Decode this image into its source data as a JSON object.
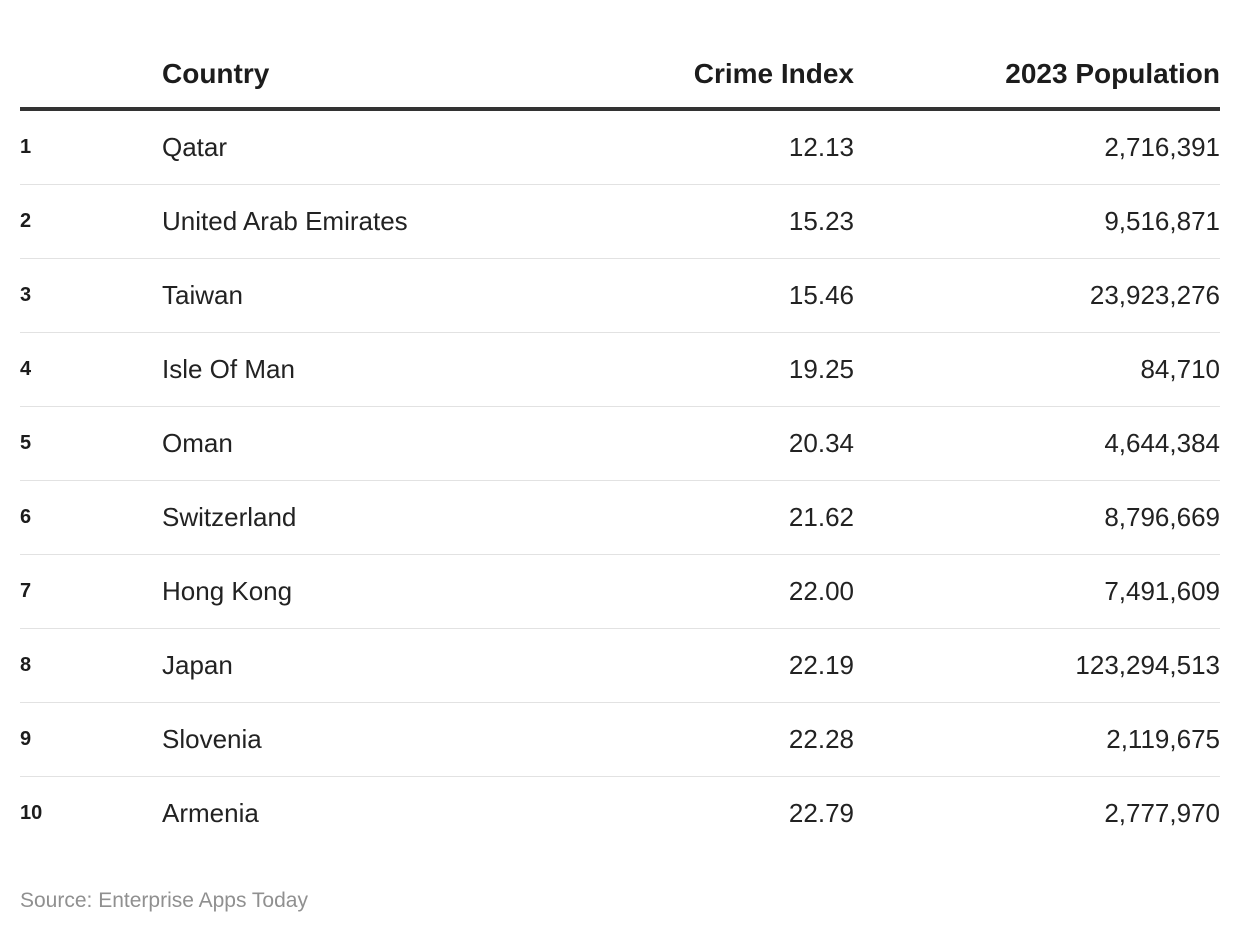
{
  "table": {
    "headers": [
      "",
      "Country",
      "Crime Index",
      "2023 Population"
    ],
    "rows": [
      {
        "rank": "1",
        "country": "Qatar",
        "crime_index": "12.13",
        "population": "2,716,391"
      },
      {
        "rank": "2",
        "country": "United Arab Emirates",
        "crime_index": "15.23",
        "population": "9,516,871"
      },
      {
        "rank": "3",
        "country": "Taiwan",
        "crime_index": "15.46",
        "population": "23,923,276"
      },
      {
        "rank": "4",
        "country": "Isle Of Man",
        "crime_index": "19.25",
        "population": "84,710"
      },
      {
        "rank": "5",
        "country": "Oman",
        "crime_index": "20.34",
        "population": "4,644,384"
      },
      {
        "rank": "6",
        "country": "Switzerland",
        "crime_index": "21.62",
        "population": "8,796,669"
      },
      {
        "rank": "7",
        "country": "Hong Kong",
        "crime_index": "22.00",
        "population": "7,491,609"
      },
      {
        "rank": "8",
        "country": "Japan",
        "crime_index": "22.19",
        "population": "123,294,513"
      },
      {
        "rank": "9",
        "country": "Slovenia",
        "crime_index": "22.28",
        "population": "2,119,675"
      },
      {
        "rank": "10",
        "country": "Armenia",
        "crime_index": "22.79",
        "population": "2,777,970"
      }
    ]
  },
  "chart_data": {
    "type": "table",
    "columns": [
      "",
      "Country",
      "Crime Index",
      "2023 Population"
    ],
    "rows": [
      [
        "1",
        "Qatar",
        12.13,
        2716391
      ],
      [
        "2",
        "United Arab Emirates",
        15.23,
        9516871
      ],
      [
        "3",
        "Taiwan",
        15.46,
        23923276
      ],
      [
        "4",
        "Isle Of Man",
        19.25,
        84710
      ],
      [
        "5",
        "Oman",
        20.34,
        4644384
      ],
      [
        "6",
        "Switzerland",
        21.62,
        8796669
      ],
      [
        "7",
        "Hong Kong",
        22.0,
        7491609
      ],
      [
        "8",
        "Japan",
        22.19,
        123294513
      ],
      [
        "9",
        "Slovenia",
        22.28,
        2119675
      ],
      [
        "10",
        "Armenia",
        22.79,
        2777970
      ]
    ]
  },
  "footer": {
    "source": "Source: Enterprise Apps Today"
  }
}
